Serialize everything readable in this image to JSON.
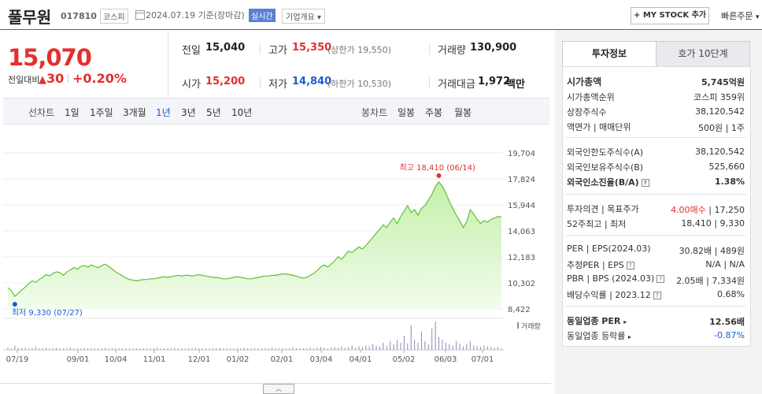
{
  "header": {
    "stock_name": "풀무원",
    "stock_code": "017810",
    "market": "코스피",
    "date_text": "2024.07.19  기준(장마감)",
    "realtime_label": "실시간",
    "company_overview_label": "기업개요",
    "my_stock_label": "+ MY STOCK 추가",
    "quick_order_label": "빠른주문"
  },
  "price": {
    "current": "15,070",
    "compare_label": "전일대비",
    "change": "30",
    "change_pct": "+0.20%"
  },
  "summary": {
    "prev_label": "전일",
    "prev_value": "15,040",
    "high_label": "고가",
    "high_value": "15,350",
    "upper_limit_text": "(상한가 19,550)",
    "volume_label": "거래량",
    "volume_value": "130,900",
    "open_label": "시가",
    "open_value": "15,200",
    "low_label": "저가",
    "low_value": "14,840",
    "lower_limit_text": "(하한가 10,530)",
    "amount_label": "거래대금",
    "amount_value": "1,972",
    "amount_unit": "백만"
  },
  "periods": {
    "line_chart_label": "선차트",
    "items": [
      "1일",
      "1주일",
      "3개월",
      "1년",
      "3년",
      "5년",
      "10년"
    ],
    "selected": "1년",
    "candle_chart_label": "봉차트",
    "candle_items": [
      "일봉",
      "주봉",
      "월봉"
    ]
  },
  "chart_data": {
    "type": "area",
    "y_ticks": [
      "19,704",
      "17,824",
      "15,944",
      "14,063",
      "12,183",
      "10,302",
      "8,422"
    ],
    "ylim": [
      8422,
      19704
    ],
    "x_ticks": [
      "07/19",
      "09/01",
      "10/04",
      "11/01",
      "12/01",
      "01/02",
      "02/01",
      "03/04",
      "04/01",
      "05/02",
      "06/03",
      "07/01"
    ],
    "high_label": "최고 18,410 (06/14)",
    "low_label": "최저 9,330 (07/27)",
    "volume_label": "거래량",
    "series": [
      {
        "values": [
          9950,
          9750,
          9330,
          9550,
          9800,
          10000,
          10250,
          10450,
          10350,
          10550,
          10700,
          10900,
          10800,
          11000,
          11100,
          11050,
          10850,
          11100,
          11250,
          11400,
          11300,
          11500,
          11550,
          11450,
          11600,
          11500,
          11400,
          11550,
          11650,
          11500,
          11300,
          11100,
          10950,
          10800,
          10650,
          10550,
          10500,
          10450,
          10500,
          10550,
          10550,
          10600,
          10600,
          10650,
          10700,
          10750,
          10700,
          10750,
          10800,
          10850,
          10800,
          10850,
          10850,
          10800,
          10850,
          10900,
          10850,
          10800,
          10750,
          10700,
          10700,
          10650,
          10600,
          10600,
          10650,
          10700,
          10750,
          10700,
          10650,
          10600,
          10600,
          10650,
          10700,
          10750,
          10800,
          10800,
          10850,
          10850,
          10900,
          10950,
          10950,
          10900,
          10850,
          10800,
          10700,
          10650,
          10700,
          10850,
          11000,
          11200,
          11450,
          11600,
          11450,
          11650,
          11900,
          12200,
          12000,
          12300,
          12600,
          12500,
          12700,
          12900,
          12750,
          13000,
          13300,
          13600,
          13900,
          14200,
          14500,
          14300,
          14700,
          15000,
          14600,
          15100,
          15500,
          15900,
          15400,
          15600,
          15200,
          15700,
          15900,
          16300,
          16700,
          17300,
          17600,
          17300,
          16800,
          16200,
          15700,
          15200,
          14800,
          14300,
          14700,
          15600,
          15300,
          14900,
          14600,
          14800,
          14700,
          14900,
          15000,
          15100,
          15070
        ]
      }
    ],
    "volume": [
      3,
      2,
      6,
      3,
      2,
      3,
      2,
      2,
      4,
      2,
      2,
      3,
      2,
      2,
      3,
      2,
      2,
      2,
      3,
      2,
      2,
      2,
      3,
      2,
      2,
      2,
      2,
      2,
      3,
      2,
      2,
      2,
      2,
      2,
      2,
      2,
      2,
      2,
      2,
      2,
      2,
      2,
      2,
      3,
      2,
      2,
      2,
      2,
      3,
      2,
      2,
      2,
      2,
      2,
      3,
      2,
      2,
      2,
      2,
      2,
      2,
      3,
      2,
      2,
      2,
      2,
      2,
      2,
      3,
      2,
      2,
      2,
      2,
      2,
      2,
      2,
      3,
      2,
      2,
      2,
      2,
      2,
      3,
      2,
      2,
      2,
      2,
      3,
      2,
      3,
      4,
      3,
      2,
      3,
      4,
      3,
      5,
      3,
      4,
      6,
      3,
      5,
      4,
      6,
      5,
      8,
      6,
      5,
      10,
      6,
      12,
      8,
      14,
      10,
      20,
      9,
      35,
      14,
      10,
      26,
      12,
      8,
      30,
      40,
      18,
      14,
      10,
      8,
      6,
      12,
      9,
      5,
      8,
      12,
      6,
      5,
      4,
      6,
      5,
      4,
      3,
      4,
      2
    ]
  },
  "tabs": {
    "invest_info": "투자정보",
    "order_book": "호가 10단계"
  },
  "invest": {
    "market_cap_label": "시가총액",
    "market_cap_value": "5,745억원",
    "rank_label": "시가총액순위",
    "rank_value": "코스피 359위",
    "shares_label": "상장주식수",
    "shares_value": "38,120,542",
    "par_label": "액면가 | 매매단위",
    "par_value": "500원 | 1주",
    "foreign_limit_label": "외국인한도주식수(A)",
    "foreign_limit_value": "38,120,542",
    "foreign_hold_label": "외국인보유주식수(B)",
    "foreign_hold_value": "525,660",
    "foreign_ratio_label": "외국인소진율(B/A)",
    "foreign_ratio_value": "1.38%",
    "opinion_label": "투자의견 | 목표주가",
    "opinion_value": "4.00매수",
    "target_value": "| 17,250",
    "wk52_label": "52주최고 | 최저",
    "wk52_value": "18,410 | 9,330",
    "per_label": "PER | EPS(2024.03)",
    "per_value": "30.82배 | 489원",
    "est_per_label": "추정PER | EPS",
    "est_per_value": "N/A | N/A",
    "pbr_label": "PBR | BPS (2024.03)",
    "pbr_value": "2.05배 | 7,334원",
    "div_label": "배당수익률 | 2023.12",
    "div_value": "0.68%",
    "sector_per_label": "동일업종 PER",
    "sector_per_value": "12.56배",
    "sector_rate_label": "동일업종 등락률",
    "sector_rate_value": "-0.87%"
  },
  "colors": {
    "up": "#e62e2e",
    "down": "#1a5dd1",
    "line": "#5fc232",
    "fill": "#d8f5c8"
  }
}
